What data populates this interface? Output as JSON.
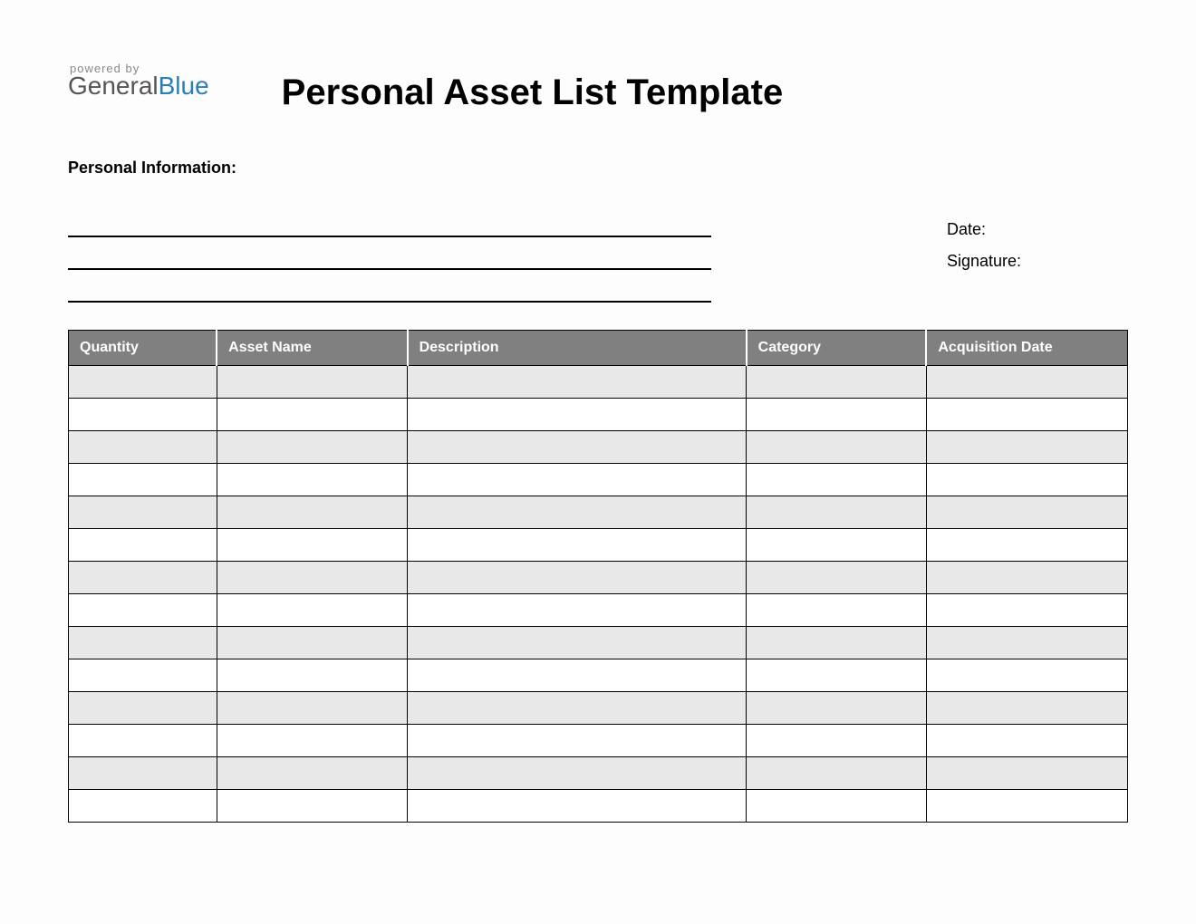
{
  "logo": {
    "powered_by": "powered by",
    "brand_general": "General",
    "brand_blue": "Blue"
  },
  "title": "Personal Asset List Template",
  "section_label": "Personal Information:",
  "meta": {
    "date_label": "Date:",
    "signature_label": "Signature:"
  },
  "table": {
    "columns": [
      {
        "label": "Quantity",
        "width": "14%"
      },
      {
        "label": "Asset Name",
        "width": "18%"
      },
      {
        "label": "Description",
        "width": "32%"
      },
      {
        "label": "Category",
        "width": "17%"
      },
      {
        "label": "Acquisition Date",
        "width": "19%"
      }
    ],
    "row_count": 14,
    "header_bg": "#808080",
    "header_fg": "#ffffff",
    "row_shaded_bg": "#e8e8e8",
    "row_plain_bg": "#ffffff",
    "border_color": "#000000"
  }
}
